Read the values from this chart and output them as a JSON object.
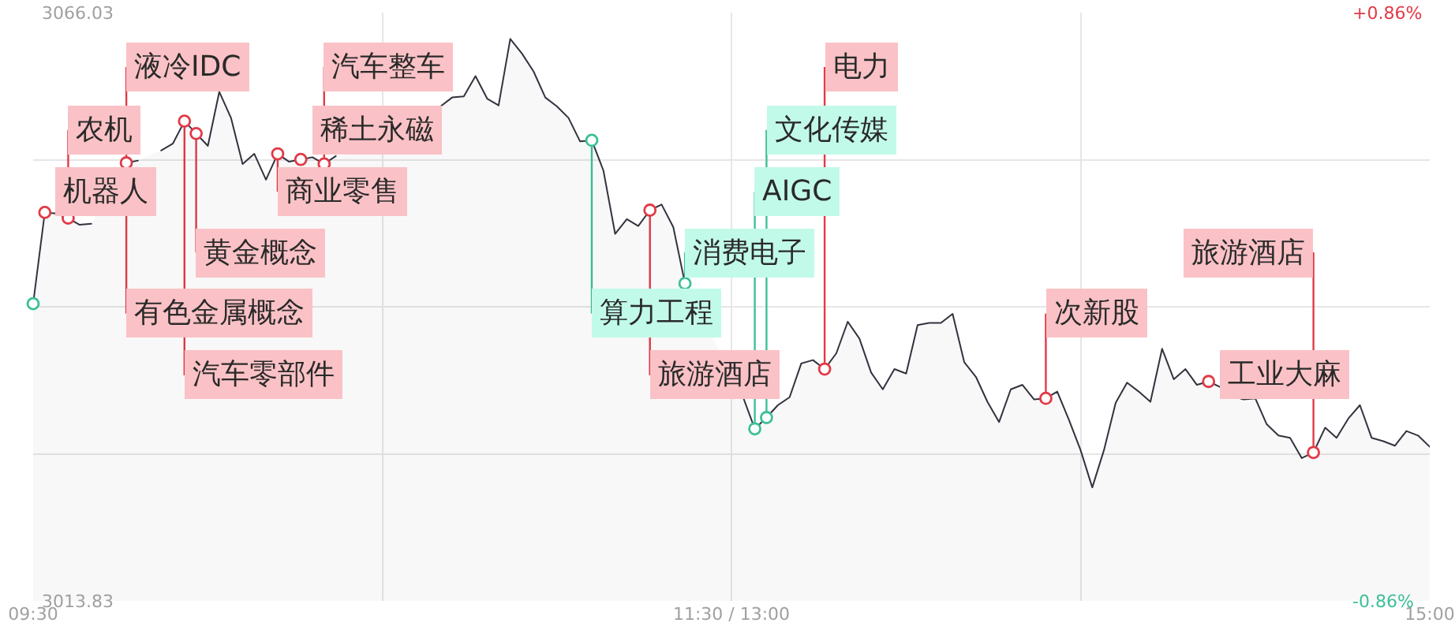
{
  "chart_data": {
    "type": "area",
    "x": [
      9.5,
      9.546,
      9.592,
      9.638,
      9.683,
      9.729,
      9.775,
      9.821,
      9.867,
      9.913,
      9.958,
      10.004,
      10.05,
      10.096,
      10.142,
      10.188,
      10.233,
      10.279,
      10.325,
      10.371,
      10.417,
      10.463,
      10.508,
      10.554,
      10.6,
      10.646,
      10.692,
      10.738,
      10.783,
      10.829,
      10.875,
      10.921,
      10.967,
      11.013,
      11.058,
      11.104,
      11.15,
      11.196,
      11.242,
      11.288,
      11.333,
      11.379,
      11.425,
      11.471,
      11.517,
      11.563,
      11.608,
      11.654,
      11.7,
      11.746,
      11.792,
      11.838,
      11.883,
      11.929,
      11.975,
      12.021,
      12.067,
      12.113,
      12.158,
      12.204,
      12.25,
      12.296,
      12.342,
      12.388,
      12.433,
      12.479,
      12.525,
      12.571,
      12.617,
      12.663,
      12.708,
      12.754,
      12.8,
      12.846,
      12.892,
      12.938,
      12.983,
      13.029,
      13.075,
      13.121,
      13.167,
      13.213,
      13.258,
      13.304,
      13.35,
      13.396,
      13.442,
      13.488,
      13.533,
      13.579,
      13.625,
      13.671,
      13.717,
      13.763,
      13.808,
      13.854,
      13.9,
      13.946,
      13.992,
      14.038,
      14.083,
      14.129,
      14.175,
      14.221,
      14.267,
      14.313,
      14.358,
      14.404,
      14.45,
      14.496,
      14.542,
      14.588,
      14.633,
      14.679,
      14.725,
      14.771,
      14.817,
      14.863,
      14.908,
      14.954,
      15
    ],
    "xlim": [
      9.5,
      15
    ],
    "xticks": [
      {
        "value": 9.5,
        "label": "09:30"
      },
      {
        "value": 10.875,
        "label": null
      },
      {
        "value": 12.25,
        "label": "11:30 / 13:00"
      },
      {
        "value": 13.625,
        "label": null
      },
      {
        "value": 15,
        "label": "15:00"
      }
    ],
    "ylim": [
      3013.83,
      3066.03
    ],
    "yticks": [
      3066.03,
      {
        "value": 3052.98,
        "label": null
      },
      {
        "value": 3039.93,
        "label": null
      },
      {
        "value": 3026.88,
        "label": null
      },
      3013.83
    ],
    "y2lim": [
      -0.86,
      0.86
    ],
    "y2ticks": [
      {
        "value": 0.86,
        "label": "+0.86%"
      },
      {
        "value": -0.86,
        "label": "-0.86%"
      }
    ],
    "grid": true,
    "series": [
      {
        "color": "#33333f",
        "values": [
          3040.2,
          3048.3,
          3048.2,
          3047.8,
          3047.2,
          3047.3,
          null,
          null,
          3052.7,
          3052.9,
          null,
          3053.8,
          3054.4,
          3056.4,
          3055.3,
          3054.2,
          3059.0,
          3056.7,
          3052.6,
          3053.5,
          3051.2,
          3053.5,
          3052.8,
          3053.0,
          3053.2,
          3052.6,
          3053.3,
          null,
          3053.5,
          3053.5,
          null,
          null,
          null,
          null,
          null,
          3057.7,
          3058.5,
          3058.6,
          3060.4,
          3058.4,
          3057.8,
          3063.7,
          3062.4,
          3060.8,
          3058.5,
          3057.7,
          3056.7,
          3054.6,
          3054.7,
          3052.0,
          3046.4,
          3047.7,
          3047.1,
          3048.5,
          3049.0,
          3047.0,
          3042.0,
          null,
          null,
          null,
          null,
          3031.9,
          3029.1,
          3030.1,
          3031.2,
          3031.9,
          3034.9,
          3035.2,
          3034.4,
          3035.8,
          3038.6,
          3037.1,
          3034.1,
          3032.6,
          3034.4,
          3034.0,
          3038.3,
          3038.5,
          3038.5,
          3039.3,
          3035.0,
          3033.7,
          3031.5,
          3029.7,
          3032.6,
          3033.0,
          3031.7,
          3031.8,
          3032.4,
          3029.9,
          3027.2,
          3023.9,
          3027.2,
          3031.4,
          3033.2,
          3032.4,
          3031.5,
          3036.2,
          3033.5,
          3034.4,
          3033.0,
          3033.3,
          3032.8,
          3032.0,
          3031.7,
          3031.8,
          3029.5,
          3028.5,
          3028.3,
          3026.5,
          3027.0,
          3029.2,
          3028.3,
          3030.0,
          3031.2,
          3028.3,
          3028.0,
          3027.6,
          3028.9,
          3028.5,
          3027.5
        ]
      },
      {
        "type": "scatter",
        "marker": "circle",
        "color": "#e23a47",
        "values": [
          null,
          3048.3,
          null,
          3047.8,
          null,
          null,
          null,
          null,
          3052.7,
          null,
          null,
          null,
          null,
          3056.4,
          3055.3,
          null,
          null,
          null,
          null,
          null,
          null,
          3053.5,
          null,
          3053.0,
          null,
          3052.6,
          null,
          null,
          null,
          null,
          null,
          null,
          null,
          null,
          null,
          null,
          null,
          null,
          null,
          null,
          null,
          null,
          null,
          null,
          null,
          null,
          null,
          null,
          null,
          null,
          null,
          null,
          null,
          3048.5,
          null,
          null,
          null,
          null,
          null,
          null,
          null,
          null,
          null,
          null,
          null,
          null,
          null,
          null,
          3034.4,
          null,
          null,
          null,
          null,
          null,
          null,
          null,
          null,
          null,
          null,
          null,
          null,
          null,
          null,
          null,
          null,
          null,
          null,
          3031.8,
          null,
          null,
          null,
          null,
          null,
          null,
          null,
          null,
          null,
          null,
          null,
          null,
          null,
          3033.3,
          null,
          null,
          null,
          null,
          null,
          null,
          null,
          null,
          3027.0,
          null,
          null,
          null,
          null,
          null,
          null,
          null,
          null,
          null,
          null
        ]
      },
      {
        "type": "scatter",
        "marker": "circle",
        "color": "#3dbf98",
        "values": [
          3040.2,
          null,
          null,
          null,
          null,
          null,
          null,
          null,
          null,
          null,
          null,
          null,
          null,
          null,
          null,
          null,
          null,
          null,
          null,
          null,
          null,
          null,
          null,
          null,
          null,
          null,
          null,
          null,
          null,
          null,
          null,
          null,
          null,
          null,
          null,
          null,
          null,
          null,
          null,
          null,
          null,
          null,
          null,
          null,
          null,
          null,
          null,
          null,
          3054.7,
          null,
          null,
          null,
          null,
          null,
          null,
          null,
          3042.0,
          null,
          null,
          null,
          null,
          null,
          3029.1,
          3030.1,
          null,
          null,
          null,
          null,
          null,
          null,
          null,
          null,
          null,
          null,
          null,
          null,
          null,
          null,
          null,
          null,
          null,
          null,
          null,
          null,
          null,
          null,
          null,
          null,
          null,
          null,
          null,
          null,
          null,
          null,
          null,
          null,
          null,
          null,
          null,
          null,
          null,
          null,
          null,
          null,
          null,
          null,
          null,
          null,
          null,
          null,
          null,
          null,
          null,
          null,
          null,
          null,
          null,
          null,
          null,
          null,
          null
        ]
      }
    ],
    "annotations": [
      {
        "text": "机器人",
        "x": 9.546,
        "y": 3048.3
      },
      {
        "text": "农机",
        "x": 9.638,
        "y": 3047.8
      },
      {
        "text": "液冷IDC",
        "x": 9.867,
        "y": 3052.7
      },
      {
        "text": "有色金属概念",
        "x": 9.867,
        "y": 3052.7
      },
      {
        "text": "汽车零部件",
        "x": 10.096,
        "y": 3056.4
      },
      {
        "text": "黄金概念",
        "x": 10.142,
        "y": 3055.3
      },
      {
        "text": "商业零售",
        "x": 10.463,
        "y": 3053.5
      },
      {
        "text": "稀土永磁",
        "x": 10.554,
        "y": 3053.0
      },
      {
        "text": "汽车整车",
        "x": 10.646,
        "y": 3052.6
      },
      {
        "text": "算力工程",
        "x": 11.7,
        "y": 3054.7
      },
      {
        "text": "旅游酒店",
        "x": 11.929,
        "y": 3048.5
      },
      {
        "text": "消费电子",
        "x": 12.067,
        "y": 3042.0
      },
      {
        "text": "AIGC",
        "x": 12.342,
        "y": 3029.1
      },
      {
        "text": "文化传媒",
        "x": 12.388,
        "y": 3030.1
      },
      {
        "text": "电力",
        "x": 12.617,
        "y": 3034.4
      },
      {
        "text": "次新股",
        "x": 13.488,
        "y": 3031.8
      },
      {
        "text": "工业大麻",
        "x": 14.129,
        "y": 3033.3
      },
      {
        "text": "旅游酒店",
        "x": 14.542,
        "y": 3027.0
      }
    ]
  }
}
